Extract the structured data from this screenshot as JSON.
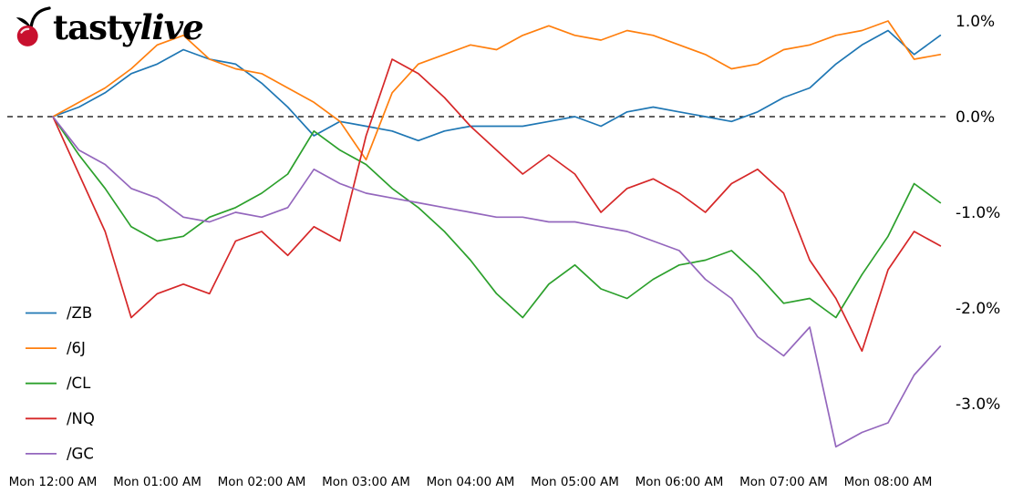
{
  "logo": {
    "tasty": "tasty",
    "live": "live"
  },
  "chart_data": {
    "type": "line",
    "title": "",
    "xlabel": "",
    "ylabel": "",
    "grid": false,
    "zero_line": {
      "show": true,
      "style": "dashed",
      "color": "#000000"
    },
    "legend_position": "lower left",
    "xlim_hours": [
      0,
      8.5
    ],
    "ylim": [
      -3.6,
      1.15
    ],
    "x_tick_labels": [
      "Mon 12:00 AM",
      "Mon 01:00 AM",
      "Mon 02:00 AM",
      "Mon 03:00 AM",
      "Mon 04:00 AM",
      "Mon 05:00 AM",
      "Mon 06:00 AM",
      "Mon 07:00 AM",
      "Mon 08:00 AM"
    ],
    "x_tick_hours": [
      0,
      1,
      2,
      3,
      4,
      5,
      6,
      7,
      8
    ],
    "y_tick_labels": [
      "1.0%",
      "0.0%",
      "-1.0%",
      "-2.0%",
      "-3.0%"
    ],
    "y_ticks": [
      1.0,
      0.0,
      -1.0,
      -2.0,
      -3.0
    ],
    "x_hours": [
      0,
      0.25,
      0.5,
      0.75,
      1,
      1.25,
      1.5,
      1.75,
      2,
      2.25,
      2.5,
      2.75,
      3,
      3.25,
      3.5,
      3.75,
      4,
      4.25,
      4.5,
      4.75,
      5,
      5.25,
      5.5,
      5.75,
      6,
      6.25,
      6.5,
      6.75,
      7,
      7.25,
      7.5,
      7.75,
      8,
      8.25,
      8.5
    ],
    "series": [
      {
        "name": "/ZB",
        "color": "#1f77b4",
        "values": [
          0.0,
          0.1,
          0.25,
          0.45,
          0.55,
          0.7,
          0.6,
          0.55,
          0.35,
          0.1,
          -0.2,
          -0.05,
          -0.1,
          -0.15,
          -0.25,
          -0.15,
          -0.1,
          -0.1,
          -0.1,
          -0.05,
          0.0,
          -0.1,
          0.05,
          0.1,
          0.05,
          0.0,
          -0.05,
          0.05,
          0.2,
          0.3,
          0.55,
          0.75,
          0.9,
          0.65,
          0.85
        ]
      },
      {
        "name": "/6J",
        "color": "#ff7f0e",
        "values": [
          0.0,
          0.15,
          0.3,
          0.5,
          0.75,
          0.85,
          0.6,
          0.5,
          0.45,
          0.3,
          0.15,
          -0.05,
          -0.45,
          0.25,
          0.55,
          0.65,
          0.75,
          0.7,
          0.85,
          0.95,
          0.85,
          0.8,
          0.9,
          0.85,
          0.75,
          0.65,
          0.5,
          0.55,
          0.7,
          0.75,
          0.85,
          0.9,
          1.0,
          0.6,
          0.65
        ]
      },
      {
        "name": "/CL",
        "color": "#2ca02c",
        "values": [
          0.0,
          -0.4,
          -0.75,
          -1.15,
          -1.3,
          -1.25,
          -1.05,
          -0.95,
          -0.8,
          -0.6,
          -0.15,
          -0.35,
          -0.5,
          -0.75,
          -0.95,
          -1.2,
          -1.5,
          -1.85,
          -2.1,
          -1.75,
          -1.55,
          -1.8,
          -1.9,
          -1.7,
          -1.55,
          -1.5,
          -1.4,
          -1.65,
          -1.95,
          -1.9,
          -2.1,
          -1.65,
          -1.25,
          -0.7,
          -0.9
        ]
      },
      {
        "name": "/NQ",
        "color": "#d62728",
        "values": [
          0.0,
          -0.6,
          -1.2,
          -2.1,
          -1.85,
          -1.75,
          -1.85,
          -1.3,
          -1.2,
          -1.45,
          -1.15,
          -1.3,
          -0.2,
          0.6,
          0.45,
          0.2,
          -0.1,
          -0.35,
          -0.6,
          -0.4,
          -0.6,
          -1.0,
          -0.75,
          -0.65,
          -0.8,
          -1.0,
          -0.7,
          -0.55,
          -0.8,
          -1.5,
          -1.9,
          -2.45,
          -1.6,
          -1.2,
          -1.35
        ]
      },
      {
        "name": "/GC",
        "color": "#9467bd",
        "values": [
          0.0,
          -0.35,
          -0.5,
          -0.75,
          -0.85,
          -1.05,
          -1.1,
          -1.0,
          -1.05,
          -0.95,
          -0.55,
          -0.7,
          -0.8,
          -0.85,
          -0.9,
          -0.95,
          -1.0,
          -1.05,
          -1.05,
          -1.1,
          -1.1,
          -1.15,
          -1.2,
          -1.3,
          -1.4,
          -1.7,
          -1.9,
          -2.3,
          -2.5,
          -2.2,
          -3.45,
          -3.3,
          -3.2,
          -2.7,
          -2.4
        ]
      }
    ]
  }
}
